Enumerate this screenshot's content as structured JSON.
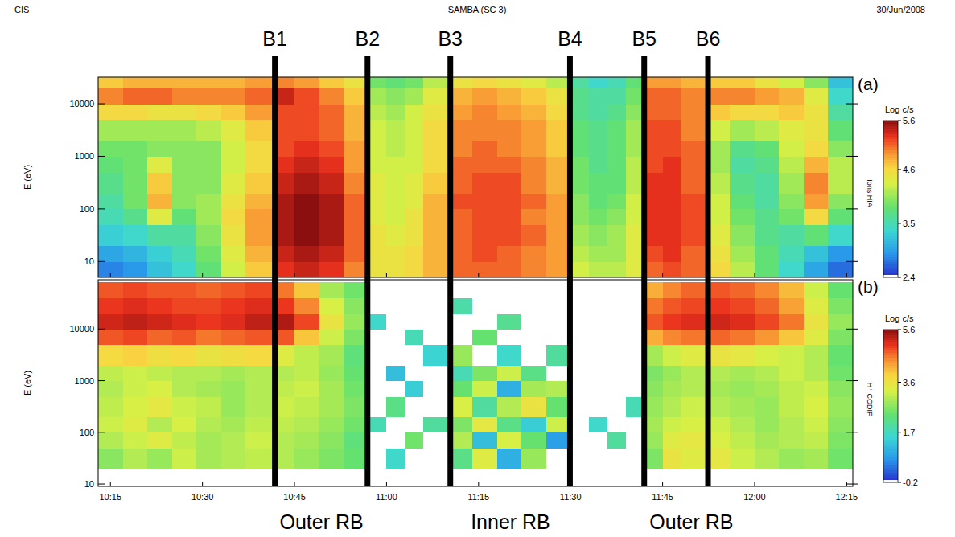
{
  "header": {
    "left": "CIS",
    "center": "SAMBA (SC 3)",
    "right": "30/Jun/2008"
  },
  "boundaries": [
    {
      "label": "B1",
      "x": 641.8
    },
    {
      "label": "B2",
      "x": 656.9
    },
    {
      "label": "B3",
      "x": 670.4
    },
    {
      "label": "B4",
      "x": 689.9
    },
    {
      "label": "B5",
      "x": 702
    },
    {
      "label": "B6",
      "x": 712.4
    }
  ],
  "regions": [
    {
      "label": "Outer RB",
      "x": 649.4
    },
    {
      "label": "Inner RB",
      "x": 680.2
    },
    {
      "label": "Outer RB",
      "x": 709.7
    }
  ],
  "chart_data": [
    {
      "type": "heatmap",
      "panel_label": "(a)",
      "instrument_label": "Ions HIA",
      "y_label": "E (eV)",
      "log": "y",
      "tick_labels": "y",
      "xlim": [
        613,
        736
      ],
      "ylim": [
        5,
        32000
      ],
      "xticks": [
        {
          "value": 615,
          "label": "10:15"
        },
        {
          "value": 630,
          "label": "10:30"
        },
        {
          "value": 645,
          "label": "10:45"
        },
        {
          "value": 660,
          "label": "11:00"
        },
        {
          "value": 675,
          "label": "11:15"
        },
        {
          "value": 690,
          "label": "11:30"
        },
        {
          "value": 705,
          "label": "11:45"
        },
        {
          "value": 720,
          "label": "12:00"
        },
        {
          "value": 735,
          "label": "12:15"
        }
      ],
      "yticks": [
        10,
        100,
        1000,
        10000
      ],
      "x_bins": [
        613,
        617,
        621,
        625,
        629,
        633,
        637,
        641.8,
        645,
        649,
        653,
        656.9,
        660,
        663,
        666,
        670.4,
        674,
        678,
        682,
        686,
        689.9,
        693,
        696,
        699,
        702,
        705,
        708,
        712.4,
        716,
        720,
        724,
        728,
        732,
        736
      ],
      "y_bins": [
        5,
        10,
        20,
        50,
        100,
        200,
        500,
        1000,
        2000,
        5000,
        10000,
        20000,
        32000
      ],
      "cells": [
        [
          2.8,
          2.9,
          3.2,
          3.4,
          3.8,
          4.3,
          4.7,
          5.3,
          5.4,
          5.3,
          5.0,
          4.5,
          4.5,
          4.6,
          4.8,
          5.1,
          5.1,
          5.1,
          5.0,
          4.9,
          4.3,
          4.2,
          4.2,
          4.4,
          5.1,
          5.2,
          5.1,
          4.6,
          4.2,
          3.8,
          3.4,
          3.0,
          2.7
        ],
        [
          3.0,
          3.1,
          3.3,
          3.5,
          3.9,
          4.4,
          4.8,
          5.4,
          5.5,
          5.4,
          5.1,
          4.5,
          4.5,
          4.6,
          4.8,
          5.1,
          5.2,
          5.1,
          5.0,
          4.9,
          4.2,
          4.1,
          4.1,
          4.4,
          5.2,
          5.3,
          5.1,
          4.5,
          4.1,
          3.8,
          3.5,
          3.2,
          2.9
        ],
        [
          3.3,
          3.4,
          3.6,
          3.6,
          4.0,
          4.5,
          4.9,
          5.5,
          5.6,
          5.5,
          5.1,
          4.5,
          4.4,
          4.5,
          4.8,
          5.1,
          5.2,
          5.2,
          5.1,
          4.9,
          4.1,
          4.0,
          4.1,
          4.4,
          5.3,
          5.3,
          5.2,
          4.4,
          4.0,
          3.7,
          3.6,
          3.8,
          3.4
        ],
        [
          3.5,
          3.7,
          4.4,
          3.8,
          4.1,
          4.6,
          4.9,
          5.5,
          5.6,
          5.5,
          5.1,
          4.4,
          4.3,
          4.5,
          4.8,
          5.1,
          5.2,
          5.2,
          5.0,
          4.9,
          4.0,
          3.9,
          4.0,
          4.3,
          5.3,
          5.3,
          5.2,
          4.3,
          3.9,
          3.7,
          3.9,
          4.6,
          3.8
        ],
        [
          3.6,
          3.9,
          4.8,
          4.0,
          4.1,
          4.5,
          4.8,
          5.5,
          5.6,
          5.5,
          5.1,
          4.4,
          4.3,
          4.4,
          4.8,
          5.2,
          5.2,
          5.2,
          5.1,
          4.9,
          4.0,
          3.8,
          3.9,
          4.3,
          5.3,
          5.3,
          5.2,
          4.3,
          3.8,
          3.6,
          4.0,
          4.9,
          4.0
        ],
        [
          3.7,
          3.9,
          4.7,
          4.0,
          4.0,
          4.4,
          4.7,
          5.4,
          5.5,
          5.4,
          5.0,
          4.4,
          4.3,
          4.4,
          4.7,
          5.1,
          5.2,
          5.2,
          5.0,
          4.8,
          3.9,
          3.8,
          3.8,
          4.2,
          5.3,
          5.3,
          5.1,
          4.2,
          3.7,
          3.6,
          4.1,
          5.0,
          4.2
        ],
        [
          3.8,
          3.9,
          4.4,
          4.0,
          4.0,
          4.3,
          4.6,
          5.3,
          5.4,
          5.3,
          4.9,
          4.3,
          4.3,
          4.3,
          4.6,
          5.1,
          5.1,
          5.1,
          5.0,
          4.8,
          3.9,
          3.7,
          3.8,
          4.2,
          5.2,
          5.3,
          5.1,
          4.1,
          3.6,
          3.7,
          4.2,
          4.8,
          4.2
        ],
        [
          3.9,
          3.9,
          4.0,
          4.0,
          4.0,
          4.3,
          4.6,
          5.2,
          5.3,
          5.2,
          4.9,
          4.3,
          4.2,
          4.3,
          4.6,
          5.0,
          5.1,
          5.0,
          4.9,
          4.7,
          3.8,
          3.7,
          3.8,
          4.1,
          5.2,
          5.2,
          5.1,
          4.1,
          3.7,
          3.8,
          4.3,
          4.6,
          4.0
        ],
        [
          4.1,
          4.1,
          4.1,
          4.1,
          4.2,
          4.4,
          4.7,
          5.2,
          5.2,
          5.1,
          4.8,
          4.3,
          4.2,
          4.3,
          4.6,
          5.0,
          5.0,
          5.0,
          4.9,
          4.7,
          3.8,
          3.7,
          3.8,
          4.1,
          5.2,
          5.2,
          5.0,
          4.3,
          4.1,
          4.2,
          4.4,
          4.5,
          3.8
        ],
        [
          4.6,
          4.6,
          4.5,
          4.5,
          4.6,
          4.7,
          4.9,
          5.2,
          5.2,
          5.1,
          4.8,
          4.2,
          4.1,
          4.3,
          4.5,
          4.9,
          5.0,
          4.9,
          4.8,
          4.6,
          3.7,
          3.6,
          3.7,
          4.0,
          5.1,
          5.1,
          5.0,
          4.7,
          4.6,
          4.6,
          4.7,
          4.5,
          3.6
        ],
        [
          5.0,
          5.1,
          5.1,
          5.0,
          5.0,
          5.0,
          5.1,
          5.4,
          5.2,
          5.0,
          4.7,
          4.1,
          4.0,
          4.1,
          4.4,
          4.8,
          4.9,
          4.8,
          4.7,
          4.5,
          3.7,
          3.6,
          3.6,
          3.9,
          5.1,
          5.1,
          5.0,
          5.0,
          5.0,
          4.9,
          4.8,
          4.4,
          3.4
        ],
        [
          4.7,
          4.8,
          4.8,
          4.8,
          4.8,
          4.8,
          4.9,
          5.0,
          4.9,
          4.7,
          4.5,
          3.9,
          3.8,
          3.9,
          4.2,
          4.5,
          4.6,
          4.5,
          4.4,
          4.2,
          3.6,
          3.4,
          3.5,
          3.8,
          4.9,
          4.9,
          4.8,
          4.7,
          4.7,
          4.5,
          4.3,
          4.0,
          3.2
        ]
      ],
      "colorbar": {
        "label": "Log c/s",
        "range": [
          2.4,
          5.6
        ],
        "ticks": [
          2.4,
          3.5,
          4.6,
          5.6
        ]
      }
    },
    {
      "type": "heatmap",
      "panel_label": "(b)",
      "instrument_label": "H⁺ CODIF",
      "y_label": "E (eV)",
      "log": "y",
      "xlim": [
        613,
        736
      ],
      "ylim": [
        9,
        90000
      ],
      "xticks": [
        {
          "value": 615,
          "label": "10:15"
        },
        {
          "value": 630,
          "label": "10:30"
        },
        {
          "value": 645,
          "label": "10:45"
        },
        {
          "value": 660,
          "label": "11:00"
        },
        {
          "value": 675,
          "label": "11:15"
        },
        {
          "value": 690,
          "label": "11:30"
        },
        {
          "value": 705,
          "label": "11:45"
        },
        {
          "value": 720,
          "label": "12:00"
        },
        {
          "value": 735,
          "label": "12:15"
        }
      ],
      "yticks": [
        10,
        100,
        1000,
        10000
      ],
      "x_bins": [
        613,
        617,
        621,
        625,
        629,
        633,
        637,
        641.8,
        645,
        649,
        653,
        656.9,
        660,
        663,
        666,
        670.4,
        674,
        678,
        682,
        686,
        689.9,
        693,
        696,
        699,
        702,
        705,
        708,
        712.4,
        716,
        720,
        724,
        728,
        732,
        736
      ],
      "y_bins": [
        20,
        50,
        100,
        200,
        500,
        1000,
        2000,
        5000,
        10000,
        20000,
        40000,
        80000
      ],
      "cells": [
        [
          2.7,
          3.0,
          2.8,
          3.2,
          2.9,
          3.0,
          3.1,
          3.0,
          2.8,
          2.6,
          2.4,
          -0.2,
          1.6,
          -0.2,
          -0.2,
          2.2,
          3.4,
          1.0,
          2.8,
          -0.2,
          -0.2,
          -0.2,
          -0.2,
          -0.2,
          2.6,
          3.6,
          3.4,
          3.5,
          3.2,
          3.0,
          2.8,
          2.9,
          2.5
        ],
        [
          3.0,
          3.2,
          3.4,
          3.1,
          2.9,
          3.0,
          3.2,
          3.0,
          2.9,
          2.7,
          2.3,
          -0.2,
          -0.2,
          2.5,
          -0.2,
          3.0,
          1.2,
          3.3,
          2.4,
          0.8,
          -0.2,
          -0.2,
          2.0,
          -0.2,
          2.8,
          3.4,
          3.5,
          3.3,
          3.1,
          2.9,
          3.0,
          3.1,
          2.6
        ],
        [
          3.2,
          3.4,
          3.0,
          3.3,
          3.0,
          2.9,
          3.1,
          3.1,
          3.0,
          2.8,
          2.5,
          1.8,
          -0.2,
          -0.2,
          2.0,
          2.6,
          3.5,
          2.2,
          1.4,
          3.2,
          -0.2,
          1.6,
          -0.2,
          -0.2,
          2.9,
          3.2,
          3.3,
          3.2,
          3.0,
          2.8,
          3.0,
          3.2,
          2.7
        ],
        [
          3.1,
          3.3,
          3.5,
          3.2,
          3.1,
          2.8,
          3.0,
          3.2,
          3.1,
          2.9,
          2.6,
          -0.2,
          2.2,
          -0.2,
          -0.2,
          3.3,
          2.0,
          3.0,
          3.6,
          2.4,
          -0.2,
          -0.2,
          -0.2,
          1.8,
          2.8,
          3.0,
          3.2,
          3.0,
          2.9,
          2.8,
          3.1,
          3.3,
          2.8
        ],
        [
          3.0,
          3.2,
          3.3,
          3.0,
          2.9,
          2.8,
          3.0,
          3.1,
          3.2,
          2.9,
          2.5,
          -0.2,
          -0.2,
          1.4,
          -0.2,
          2.4,
          3.2,
          1.0,
          2.9,
          3.0,
          -0.2,
          -0.2,
          -0.2,
          -0.2,
          2.7,
          2.9,
          3.0,
          2.9,
          2.8,
          2.9,
          3.1,
          3.2,
          2.7
        ],
        [
          3.1,
          3.2,
          3.1,
          3.0,
          3.0,
          2.9,
          3.0,
          3.0,
          3.1,
          2.8,
          2.4,
          -0.2,
          1.2,
          -0.2,
          -0.2,
          1.8,
          2.6,
          3.2,
          2.2,
          -0.2,
          -0.2,
          -0.2,
          -0.2,
          -0.2,
          2.6,
          2.8,
          3.0,
          3.0,
          2.9,
          3.0,
          3.2,
          3.0,
          2.5
        ],
        [
          3.8,
          3.9,
          3.7,
          3.8,
          3.6,
          3.7,
          3.8,
          3.4,
          3.1,
          2.9,
          2.3,
          -0.2,
          -0.2,
          -0.2,
          1.5,
          2.8,
          -0.2,
          1.6,
          -0.2,
          2.0,
          -0.2,
          -0.2,
          -0.2,
          -0.2,
          2.9,
          3.2,
          3.4,
          3.6,
          3.5,
          3.3,
          3.2,
          3.0,
          2.4
        ],
        [
          4.8,
          4.9,
          4.7,
          4.8,
          4.6,
          4.7,
          4.8,
          4.8,
          4.0,
          3.2,
          2.6,
          -0.2,
          -0.2,
          1.8,
          -0.2,
          -0.2,
          2.4,
          -0.2,
          -0.2,
          -0.2,
          -0.2,
          -0.2,
          -0.2,
          -0.2,
          4.2,
          4.5,
          4.6,
          4.7,
          4.6,
          4.4,
          4.0,
          3.4,
          2.6
        ],
        [
          5.2,
          5.3,
          5.2,
          5.1,
          5.0,
          5.1,
          5.3,
          5.4,
          4.9,
          3.6,
          2.8,
          1.6,
          -0.2,
          -0.2,
          -0.2,
          -0.2,
          -0.2,
          2.1,
          -0.2,
          -0.2,
          -0.2,
          -0.2,
          -0.2,
          -0.2,
          4.8,
          5.0,
          5.1,
          5.2,
          5.1,
          4.9,
          4.6,
          3.6,
          2.8
        ],
        [
          5.0,
          5.1,
          5.0,
          4.9,
          4.9,
          5.0,
          5.1,
          5.0,
          4.5,
          3.3,
          2.7,
          -0.2,
          -0.2,
          -0.2,
          -0.2,
          1.9,
          -0.2,
          -0.2,
          -0.2,
          -0.2,
          -0.2,
          -0.2,
          -0.2,
          -0.2,
          4.6,
          4.8,
          4.9,
          5.0,
          4.9,
          4.7,
          4.3,
          3.4,
          2.6
        ],
        [
          4.8,
          4.9,
          4.8,
          4.8,
          4.7,
          4.8,
          4.9,
          4.6,
          4.0,
          2.9,
          2.5,
          -0.2,
          -0.2,
          -0.2,
          -0.2,
          -0.2,
          -0.2,
          -0.2,
          -0.2,
          -0.2,
          -0.2,
          -0.2,
          -0.2,
          -0.2,
          4.2,
          4.5,
          4.7,
          4.8,
          4.7,
          4.5,
          4.1,
          3.2,
          2.4
        ]
      ],
      "colorbar": {
        "label": "Log c/s",
        "range": [
          -0.2,
          5.6
        ],
        "ticks": [
          -0.2,
          1.7,
          3.6,
          5.6
        ]
      }
    }
  ]
}
